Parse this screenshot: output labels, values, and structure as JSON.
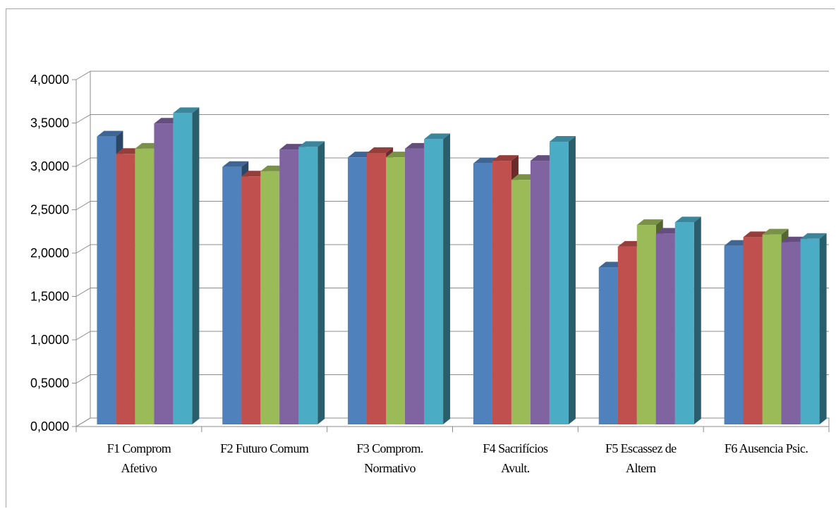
{
  "chart_data": {
    "type": "bar",
    "title": "",
    "xlabel": "",
    "ylabel": "",
    "ylim": [
      0,
      4
    ],
    "yticks": [
      "0,0000",
      "0,5000",
      "1,0000",
      "1,5000",
      "2,0000",
      "2,5000",
      "3,0000",
      "3,5000",
      "4,0000"
    ],
    "categories": [
      [
        "F1  Comprom",
        "Afetivo"
      ],
      [
        "F2  Futuro Comum"
      ],
      [
        "F3  Comprom.",
        "Normativo"
      ],
      [
        "F4  Sacrifícios",
        "Avult."
      ],
      [
        "F5  Escassez de",
        "Altern"
      ],
      [
        "F6  Ausencia Psic."
      ]
    ],
    "series": [
      {
        "color": "#4f81bd",
        "values": [
          3.32,
          2.97,
          3.08,
          3.01,
          1.81,
          2.06
        ]
      },
      {
        "color": "#c0504d",
        "values": [
          3.12,
          2.86,
          3.13,
          3.04,
          2.05,
          2.16
        ]
      },
      {
        "color": "#9bbb59",
        "values": [
          3.18,
          2.92,
          3.08,
          2.82,
          2.3,
          2.19
        ]
      },
      {
        "color": "#8064a2",
        "values": [
          3.47,
          3.17,
          3.18,
          3.04,
          2.2,
          2.1
        ]
      },
      {
        "color": "#4bacc6",
        "values": [
          3.59,
          3.2,
          3.29,
          3.26,
          2.33,
          2.14
        ]
      }
    ],
    "grid": true,
    "legend": "none",
    "style": "3d-clustered-column"
  }
}
